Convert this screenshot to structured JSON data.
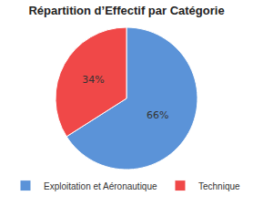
{
  "chart_data": {
    "type": "pie",
    "title": "Répartition d’Effectif par Catégorie",
    "categories": [
      "Exploitation et Aéronautique",
      "Technique"
    ],
    "values": [
      66,
      34
    ],
    "value_labels": [
      "66%",
      "34%"
    ],
    "colors": [
      "#5b93d8",
      "#f04848"
    ],
    "data_labels": true,
    "legend": "bottom"
  }
}
